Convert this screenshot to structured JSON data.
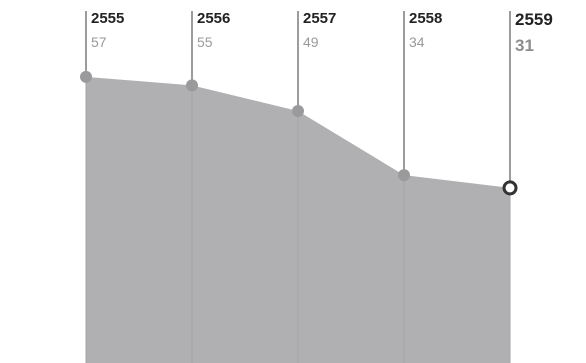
{
  "chart_data": {
    "type": "area",
    "x": [
      "2555",
      "2556",
      "2557",
      "2558",
      "2559"
    ],
    "values": [
      57,
      55,
      49,
      34,
      31
    ],
    "value_labels": [
      "57",
      "55",
      "49",
      "34",
      "31"
    ],
    "ylim": [
      -10,
      75
    ],
    "highlight_last": true,
    "colors": {
      "area": "#b0b0b2",
      "guide_line": "#3a3a3a",
      "inner_line": "#a3a3a5",
      "marker": "#9a9a9c",
      "highlight_stroke": "#333333"
    }
  }
}
